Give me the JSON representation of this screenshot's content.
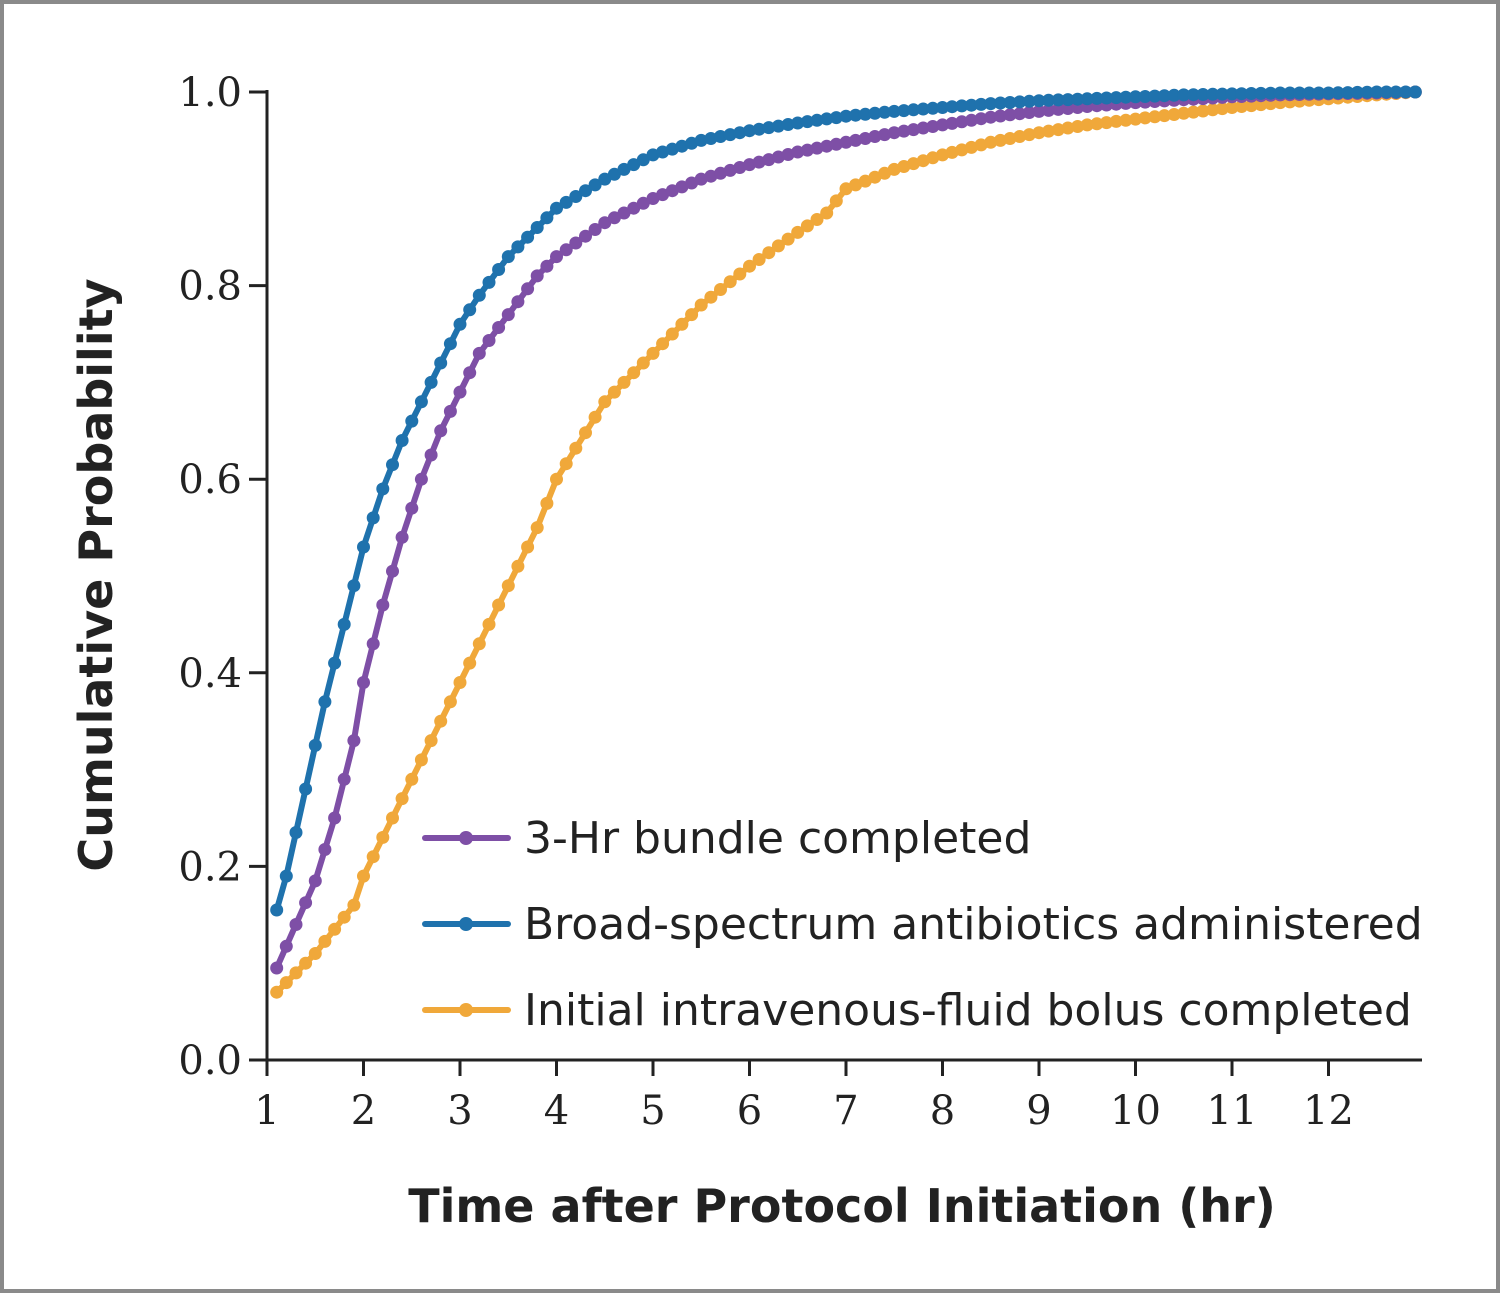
{
  "chart_data": {
    "type": "line",
    "title": "",
    "xlabel": "Time after Protocol Initiation (hr)",
    "ylabel": "Cumulative Probability",
    "xlim": [
      1,
      13
    ],
    "ylim": [
      0,
      1
    ],
    "x_ticks": [
      "1",
      "2",
      "3",
      "4",
      "5",
      "6",
      "7",
      "8",
      "9",
      "10",
      "11",
      "12"
    ],
    "y_ticks": [
      "0.0",
      "0.2",
      "0.4",
      "0.6",
      "0.8",
      "1.0"
    ],
    "grid": false,
    "legend_position": "bottom-right",
    "series": [
      {
        "name": "3-Hr bundle completed",
        "color": "#7e4fa6",
        "x": [
          1.1,
          1.3,
          1.5,
          1.7,
          1.9,
          2.0,
          2.2,
          2.4,
          2.6,
          2.8,
          3.0,
          3.2,
          3.5,
          3.8,
          4.0,
          4.5,
          5.0,
          5.5,
          6.0,
          6.5,
          7.0,
          7.5,
          8.0,
          8.5,
          9.0,
          9.5,
          10.0,
          10.5,
          11.0,
          11.5,
          12.0,
          12.5,
          12.9
        ],
        "values": [
          0.095,
          0.14,
          0.185,
          0.25,
          0.33,
          0.39,
          0.47,
          0.54,
          0.6,
          0.65,
          0.69,
          0.73,
          0.77,
          0.81,
          0.83,
          0.865,
          0.89,
          0.91,
          0.925,
          0.938,
          0.948,
          0.958,
          0.966,
          0.974,
          0.98,
          0.985,
          0.989,
          0.992,
          0.995,
          0.997,
          0.998,
          0.999,
          1.0
        ]
      },
      {
        "name": "Broad-spectrum antibiotics administered",
        "color": "#1f72ad",
        "x": [
          1.1,
          1.2,
          1.4,
          1.6,
          1.8,
          2.0,
          2.2,
          2.4,
          2.6,
          2.8,
          3.0,
          3.2,
          3.5,
          3.8,
          4.0,
          4.5,
          5.0,
          5.5,
          6.0,
          6.5,
          7.0,
          7.5,
          8.0,
          8.5,
          9.0,
          9.5,
          10.0,
          10.5,
          11.0,
          11.5,
          12.0,
          12.5,
          12.9
        ],
        "values": [
          0.155,
          0.19,
          0.28,
          0.37,
          0.45,
          0.53,
          0.59,
          0.64,
          0.68,
          0.72,
          0.76,
          0.79,
          0.83,
          0.86,
          0.88,
          0.91,
          0.935,
          0.95,
          0.96,
          0.968,
          0.975,
          0.98,
          0.984,
          0.988,
          0.991,
          0.993,
          0.995,
          0.997,
          0.998,
          0.999,
          0.999,
          1.0,
          1.0
        ]
      },
      {
        "name": "Initial intravenous-fluid bolus completed",
        "color": "#f0a83a",
        "x": [
          1.1,
          1.3,
          1.5,
          1.7,
          1.9,
          2.0,
          2.2,
          2.4,
          2.6,
          2.8,
          3.0,
          3.2,
          3.5,
          3.8,
          4.0,
          4.5,
          5.0,
          5.5,
          6.0,
          6.5,
          6.8,
          7.0,
          7.5,
          8.0,
          8.5,
          9.0,
          9.5,
          10.0,
          10.5,
          11.0,
          11.5,
          12.0,
          12.5,
          12.9
        ],
        "values": [
          0.07,
          0.09,
          0.11,
          0.135,
          0.16,
          0.19,
          0.23,
          0.27,
          0.31,
          0.35,
          0.39,
          0.43,
          0.49,
          0.55,
          0.6,
          0.68,
          0.73,
          0.78,
          0.82,
          0.855,
          0.875,
          0.9,
          0.92,
          0.935,
          0.948,
          0.958,
          0.966,
          0.972,
          0.978,
          0.984,
          0.989,
          0.993,
          0.997,
          1.0
        ]
      }
    ]
  }
}
